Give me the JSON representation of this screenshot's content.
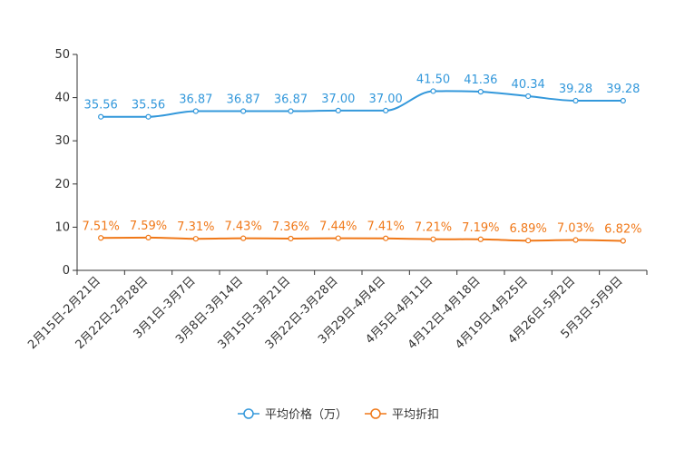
{
  "chart_data": {
    "type": "line",
    "title": "",
    "xlabel": "",
    "ylabel": "",
    "ylim": [
      0,
      50
    ],
    "yticks": [
      "0",
      "10",
      "20",
      "30",
      "40",
      "50"
    ],
    "categories": [
      "2月15日-2月21日",
      "2月22日-2月28日",
      "3月1日-3月7日",
      "3月8日-3月14日",
      "3月15日-3月21日",
      "3月22日-3月28日",
      "3月29日-4月4日",
      "4月5日-4月11日",
      "4月12日-4月18日",
      "4月19日-4月25日",
      "4月26日-5月2日",
      "5月3日-5月9日"
    ],
    "series": [
      {
        "name": "平均价格（万）",
        "color": "#3398DB",
        "values": [
          35.56,
          35.56,
          36.87,
          36.87,
          36.87,
          37.0,
          37.0,
          41.5,
          41.36,
          40.34,
          39.28,
          39.28
        ],
        "labels": [
          "35.56",
          "35.56",
          "36.87",
          "36.87",
          "36.87",
          "37.00",
          "37.00",
          "41.50",
          "41.36",
          "40.34",
          "39.28",
          "39.28"
        ]
      },
      {
        "name": "平均折扣",
        "color": "#F07818",
        "values": [
          7.51,
          7.59,
          7.31,
          7.43,
          7.36,
          7.44,
          7.41,
          7.21,
          7.19,
          6.89,
          7.03,
          6.82
        ],
        "labels": [
          "7.51%",
          "7.59%",
          "7.31%",
          "7.43%",
          "7.36%",
          "7.44%",
          "7.41%",
          "7.21%",
          "7.19%",
          "6.89%",
          "7.03%",
          "6.82%"
        ]
      }
    ],
    "legend": {
      "position": "bottom-center"
    },
    "grid": false
  }
}
